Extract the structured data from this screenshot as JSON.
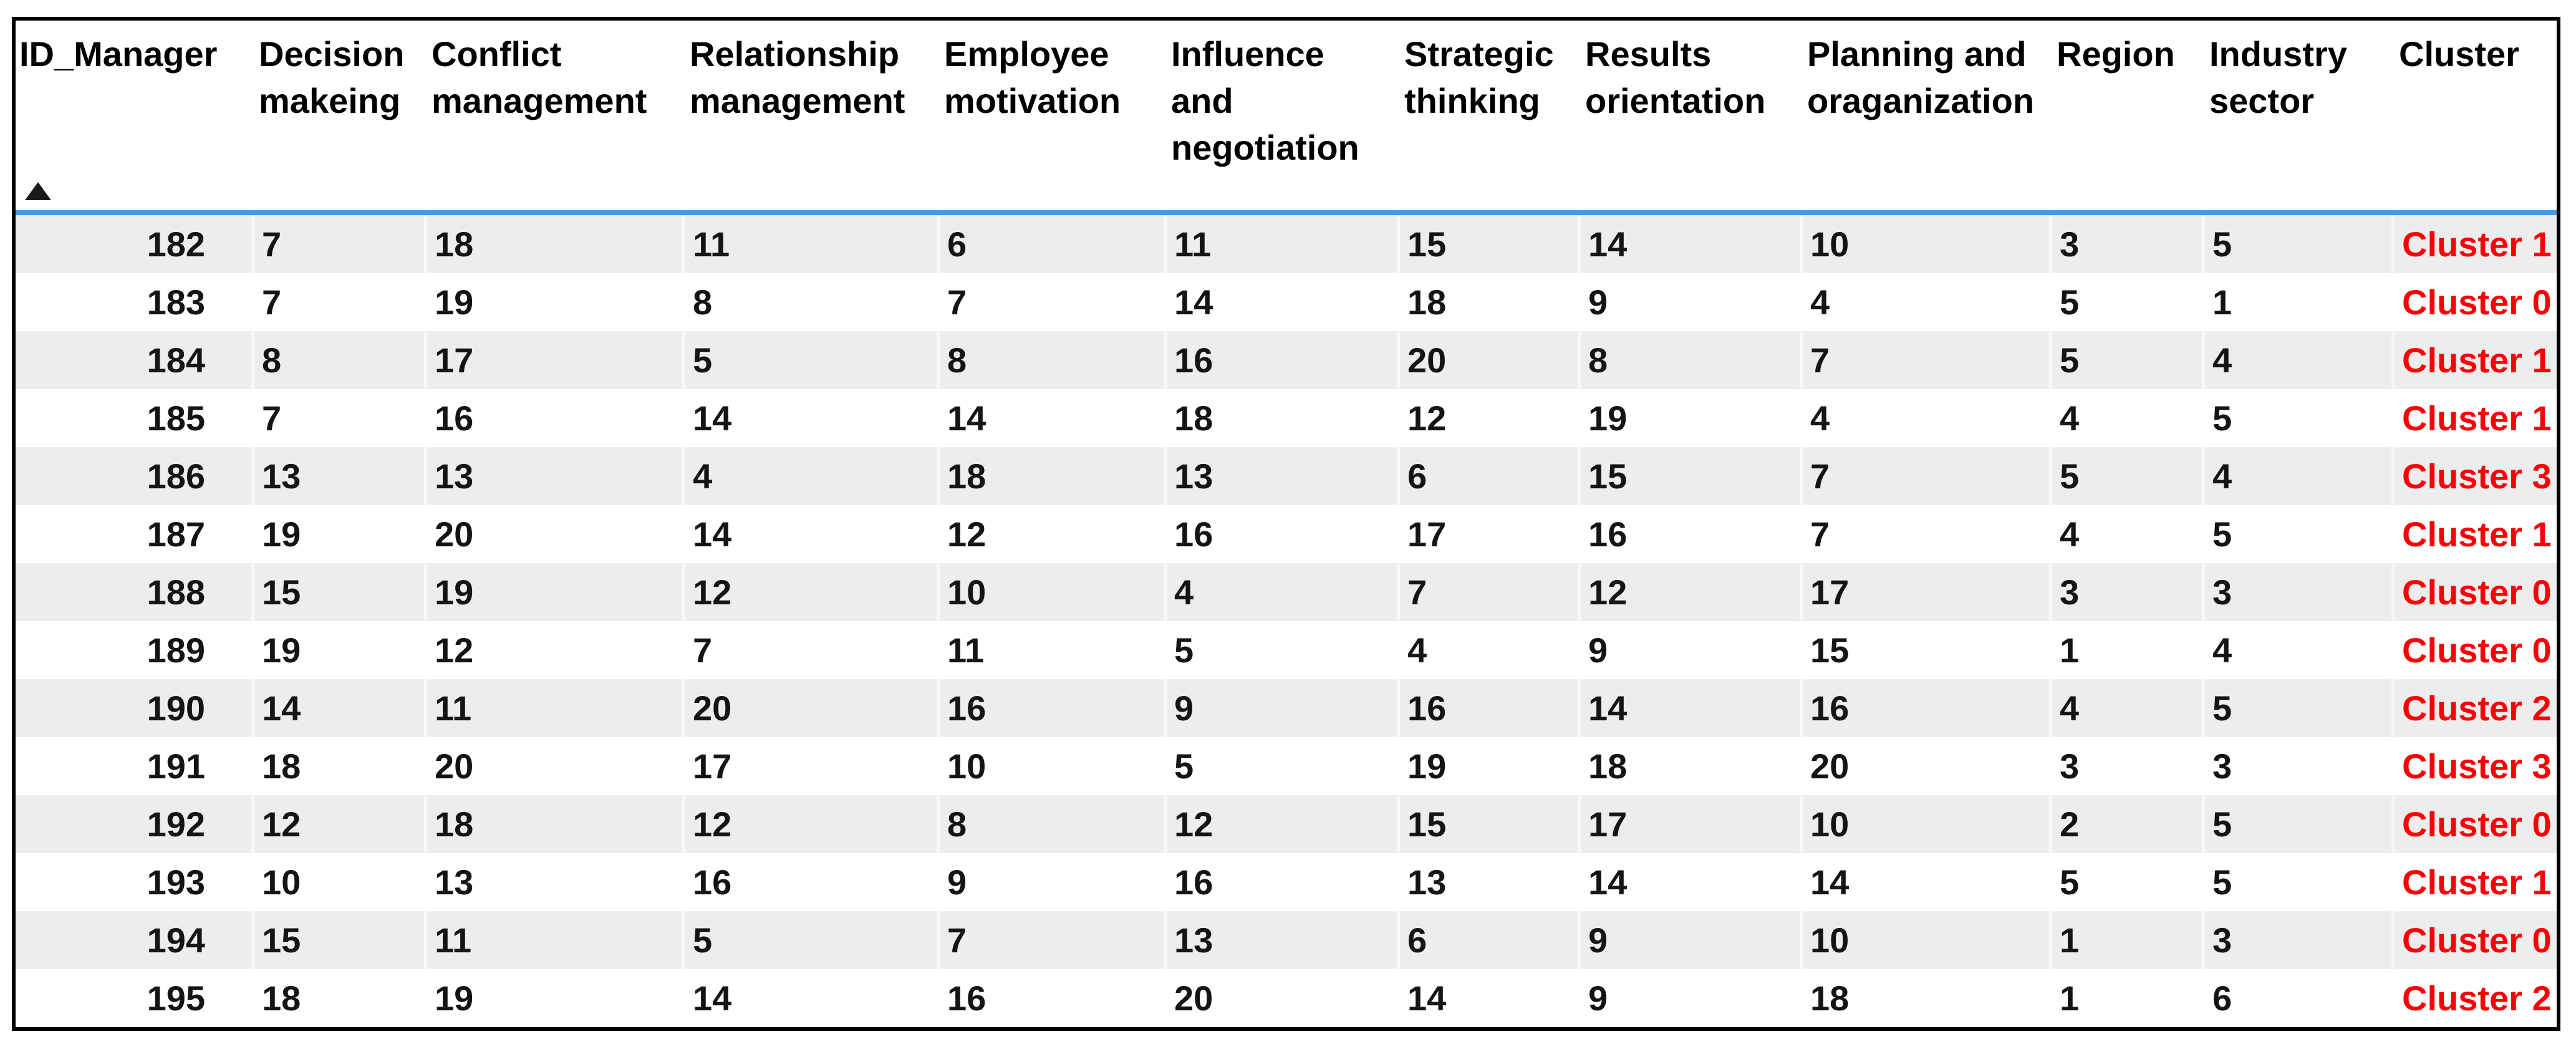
{
  "chart_data": {
    "type": "table",
    "sort": {
      "column": "ID_Manager",
      "direction": "ascending"
    },
    "columns": [
      {
        "id": "id-manager",
        "label": "ID_Manager"
      },
      {
        "id": "decision-makeing",
        "label": "Decision\nmakeing"
      },
      {
        "id": "conflict-management",
        "label": "Conflict\nmanagement"
      },
      {
        "id": "relationship-management",
        "label": "Relationship\nmanagement"
      },
      {
        "id": "employee-motivation",
        "label": "Employee\nmotivation"
      },
      {
        "id": "influence-negotiation",
        "label": "Influence\nand\nnegotiation"
      },
      {
        "id": "strategic-thinking",
        "label": "Strategic\nthinking"
      },
      {
        "id": "results-orientation",
        "label": "Results\norientation"
      },
      {
        "id": "planning-oraganization",
        "label": "Planning and\noraganization"
      },
      {
        "id": "region",
        "label": "Region"
      },
      {
        "id": "industry-sector",
        "label": "Industry\nsector"
      },
      {
        "id": "cluster",
        "label": "Cluster"
      }
    ],
    "rows": [
      [
        182,
        7,
        18,
        11,
        6,
        11,
        15,
        14,
        10,
        3,
        5,
        "Cluster 1"
      ],
      [
        183,
        7,
        19,
        8,
        7,
        14,
        18,
        9,
        4,
        5,
        1,
        "Cluster 0"
      ],
      [
        184,
        8,
        17,
        5,
        8,
        16,
        20,
        8,
        7,
        5,
        4,
        "Cluster 1"
      ],
      [
        185,
        7,
        16,
        14,
        14,
        18,
        12,
        19,
        4,
        4,
        5,
        "Cluster 1"
      ],
      [
        186,
        13,
        13,
        4,
        18,
        13,
        6,
        15,
        7,
        5,
        4,
        "Cluster 3"
      ],
      [
        187,
        19,
        20,
        14,
        12,
        16,
        17,
        16,
        7,
        4,
        5,
        "Cluster 1"
      ],
      [
        188,
        15,
        19,
        12,
        10,
        4,
        7,
        12,
        17,
        3,
        3,
        "Cluster 0"
      ],
      [
        189,
        19,
        12,
        7,
        11,
        5,
        4,
        9,
        15,
        1,
        4,
        "Cluster 0"
      ],
      [
        190,
        14,
        11,
        20,
        16,
        9,
        16,
        14,
        16,
        4,
        5,
        "Cluster 2"
      ],
      [
        191,
        18,
        20,
        17,
        10,
        5,
        19,
        18,
        20,
        3,
        3,
        "Cluster 3"
      ],
      [
        192,
        12,
        18,
        12,
        8,
        12,
        15,
        17,
        10,
        2,
        5,
        "Cluster 0"
      ],
      [
        193,
        10,
        13,
        16,
        9,
        16,
        13,
        14,
        14,
        5,
        5,
        "Cluster 1"
      ],
      [
        194,
        15,
        11,
        5,
        7,
        13,
        6,
        9,
        10,
        1,
        3,
        "Cluster 0"
      ],
      [
        195,
        18,
        19,
        14,
        16,
        20,
        14,
        9,
        18,
        1,
        6,
        "Cluster 2"
      ]
    ],
    "colors": {
      "cluster_text": "#fb0007",
      "header_separator": "#419bea",
      "alt_row_background": "#ededed",
      "table_border": "#000000"
    }
  }
}
